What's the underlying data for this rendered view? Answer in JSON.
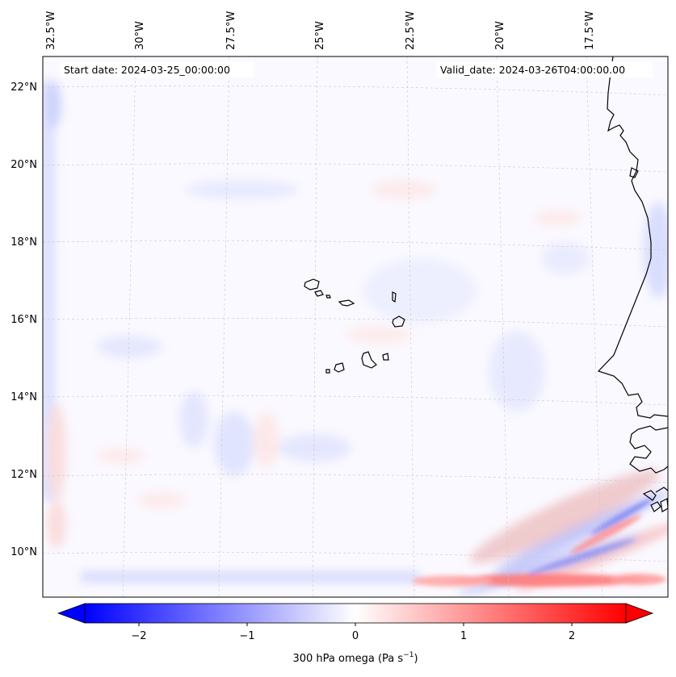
{
  "map": {
    "start_date": "Start date: 2024-03-25_00:00:00",
    "valid_date": "Valid_date: 2024-03-26T04:00:00.00",
    "lon_labels": [
      "32.5°W",
      "30°W",
      "27.5°W",
      "25°W",
      "22.5°W",
      "20°W",
      "17.5°W"
    ],
    "lat_labels": [
      "22°N",
      "20°N",
      "18°N",
      "16°N",
      "14°N",
      "12°N",
      "10°N"
    ],
    "extent": {
      "lon": [
        -32.7,
        -15.2
      ],
      "lat": [
        8.8,
        22.8
      ]
    },
    "field": "300 hPa omega",
    "colormap": "bwr",
    "features": [
      "Cape Verde islands",
      "West African coastline"
    ]
  },
  "colorbar": {
    "label_text": "300 hPa omega (Pa s",
    "label_exp": "−1",
    "label_close": ")",
    "ticks": [
      "−2",
      "−1",
      "0",
      "1",
      "2"
    ],
    "tick_values": [
      -2,
      -1,
      0,
      1,
      2
    ],
    "range": [
      -2.5,
      2.5
    ],
    "extend": "both",
    "colors": {
      "low": "#0000ff",
      "mid": "#ffffff",
      "high": "#ff0000"
    }
  }
}
